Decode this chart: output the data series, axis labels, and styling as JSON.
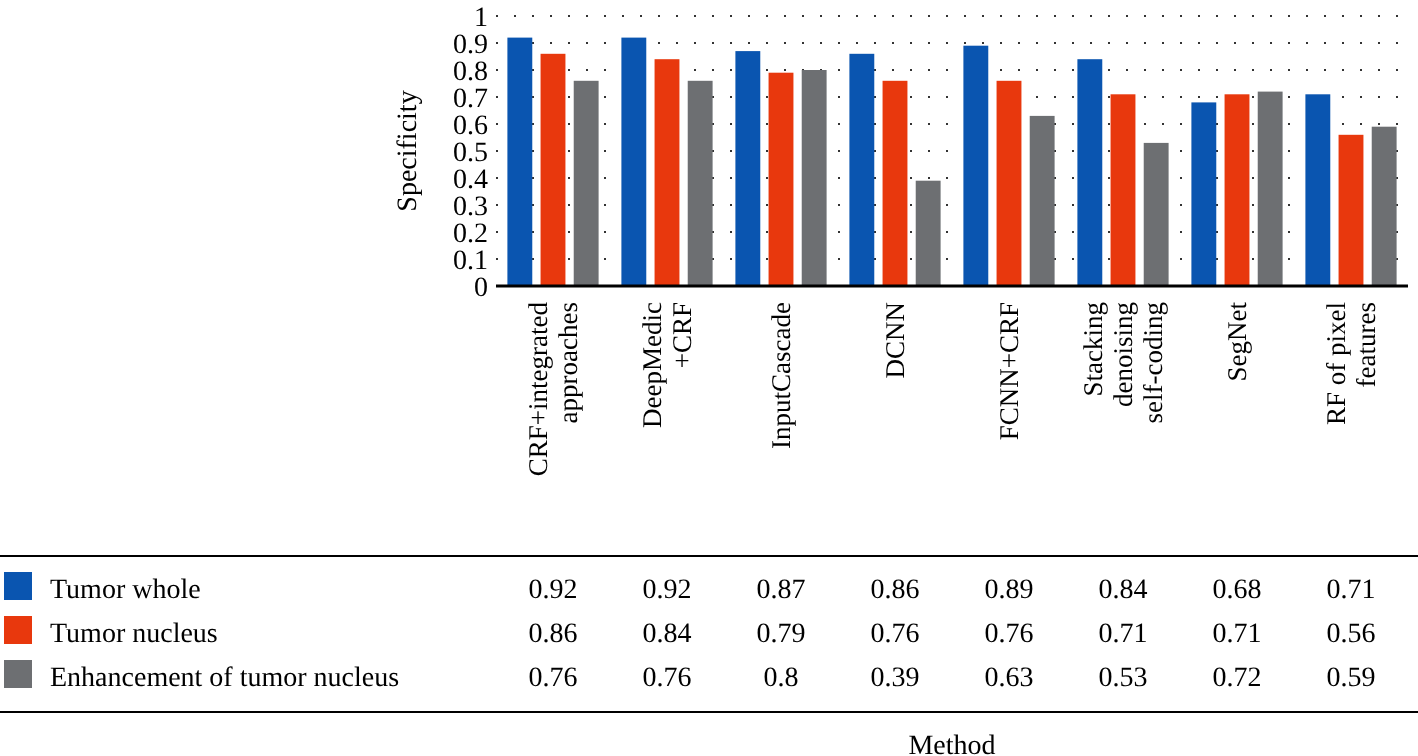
{
  "chart_data": {
    "type": "bar",
    "ylabel": "Specificity",
    "annotations": [
      "Method"
    ],
    "categories": [
      "CRF+integrated approaches",
      "DeepMedic +CRF",
      "InputCascade",
      "DCNN",
      "FCNN+CRF",
      "Stacking denoising self-coding",
      "SegNet",
      "RF of pixel features"
    ],
    "series": [
      {
        "name": "Tumor whole",
        "color": "#0a55b0",
        "values": [
          0.92,
          0.92,
          0.87,
          0.86,
          0.89,
          0.84,
          0.68,
          0.71
        ]
      },
      {
        "name": "Tumor nucleus",
        "color": "#e8380d",
        "values": [
          0.86,
          0.84,
          0.79,
          0.76,
          0.76,
          0.71,
          0.71,
          0.56
        ]
      },
      {
        "name": "Enhancement of tumor nucleus",
        "color": "#6d6f72",
        "values": [
          0.76,
          0.76,
          0.8,
          0.39,
          0.63,
          0.53,
          0.72,
          0.59
        ]
      }
    ],
    "ylim": [
      0,
      1
    ],
    "yticks": [
      0,
      0.1,
      0.2,
      0.3,
      0.4,
      0.5,
      0.6,
      0.7,
      0.8,
      0.9,
      1
    ],
    "grid": "y",
    "legend": "bottom left",
    "data_labels": true
  }
}
